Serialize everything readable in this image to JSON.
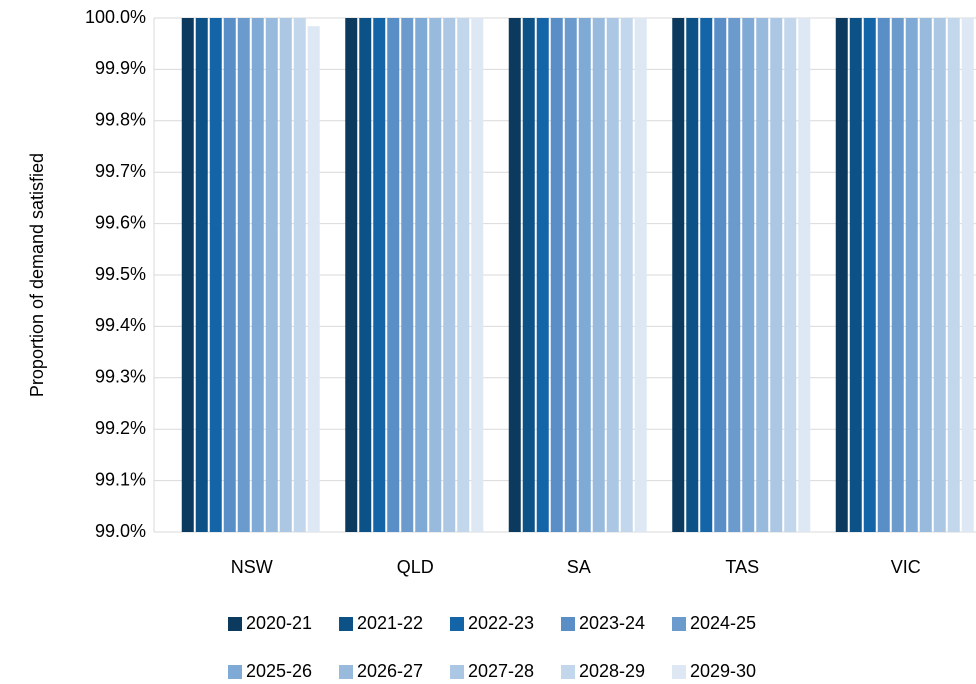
{
  "chart_data": {
    "type": "bar",
    "y_label": "Proportion of demand satisfied",
    "categories": [
      "NSW",
      "QLD",
      "SA",
      "TAS",
      "VIC"
    ],
    "series": [
      {
        "name": "2020-21",
        "color": "#0b3a5e",
        "values": [
          100,
          100,
          100,
          100,
          100
        ]
      },
      {
        "name": "2021-22",
        "color": "#0d5286",
        "values": [
          100,
          100,
          100,
          100,
          100
        ]
      },
      {
        "name": "2022-23",
        "color": "#1464a8",
        "values": [
          100,
          100,
          100,
          100,
          100
        ]
      },
      {
        "name": "2023-24",
        "color": "#5a8ec6",
        "values": [
          100,
          100,
          100,
          100,
          100
        ]
      },
      {
        "name": "2024-25",
        "color": "#6b9bcd",
        "values": [
          100,
          100,
          100,
          100,
          100
        ]
      },
      {
        "name": "2025-26",
        "color": "#80aad6",
        "values": [
          100,
          100,
          100,
          100,
          100
        ]
      },
      {
        "name": "2026-27",
        "color": "#97badd",
        "values": [
          100,
          100,
          100,
          100,
          100
        ]
      },
      {
        "name": "2027-28",
        "color": "#abc7e3",
        "values": [
          100,
          100,
          100,
          100,
          100
        ]
      },
      {
        "name": "2028-29",
        "color": "#c3d7ec",
        "values": [
          100,
          100,
          100,
          100,
          100
        ]
      },
      {
        "name": "2029-30",
        "color": "#dde8f4",
        "values": [
          99.984,
          100,
          100,
          100,
          100
        ]
      }
    ],
    "ylim": [
      99.0,
      100.0
    ],
    "yticks": [
      {
        "value": 99.0,
        "label": "99.0%"
      },
      {
        "value": 99.1,
        "label": "99.1%"
      },
      {
        "value": 99.2,
        "label": "99.2%"
      },
      {
        "value": 99.3,
        "label": "99.3%"
      },
      {
        "value": 99.4,
        "label": "99.4%"
      },
      {
        "value": 99.5,
        "label": "99.5%"
      },
      {
        "value": 99.6,
        "label": "99.6%"
      },
      {
        "value": 99.7,
        "label": "99.7%"
      },
      {
        "value": 99.8,
        "label": "99.8%"
      },
      {
        "value": 99.9,
        "label": "99.9%"
      },
      {
        "value": 100.0,
        "label": "100.0%"
      }
    ],
    "grid": true
  }
}
